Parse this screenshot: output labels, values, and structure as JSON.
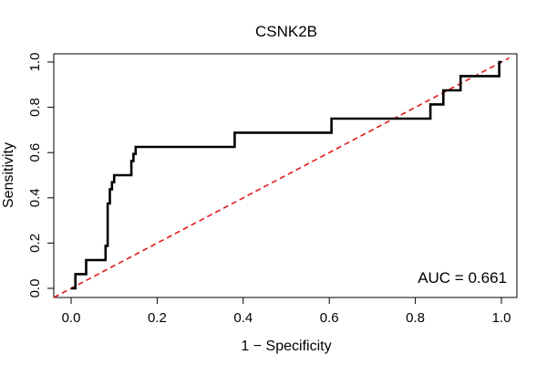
{
  "chart_data": {
    "type": "line",
    "title": "CSNK2B",
    "xlabel": "1 − Specificity",
    "ylabel": "Sensitivity",
    "xlim": [
      0,
      1
    ],
    "ylim": [
      0,
      1
    ],
    "x_ticks": [
      "0.0",
      "0.2",
      "0.4",
      "0.6",
      "0.8",
      "1.0"
    ],
    "y_ticks": [
      "0.0",
      "0.2",
      "0.4",
      "0.6",
      "0.8",
      "1.0"
    ],
    "annotation": "AUC = 0.661",
    "series": [
      {
        "name": "ROC curve",
        "color": "#000000",
        "style": "solid",
        "x": [
          0.0,
          0.01,
          0.01,
          0.035,
          0.035,
          0.08,
          0.08,
          0.085,
          0.085,
          0.09,
          0.09,
          0.095,
          0.095,
          0.1,
          0.1,
          0.14,
          0.14,
          0.145,
          0.145,
          0.15,
          0.15,
          0.38,
          0.38,
          0.605,
          0.605,
          0.835,
          0.835,
          0.865,
          0.865,
          0.905,
          0.905,
          0.995,
          0.995,
          1.0
        ],
        "y": [
          0.0,
          0.0,
          0.063,
          0.063,
          0.125,
          0.125,
          0.188,
          0.188,
          0.375,
          0.375,
          0.438,
          0.438,
          0.469,
          0.469,
          0.5,
          0.5,
          0.563,
          0.563,
          0.594,
          0.594,
          0.625,
          0.625,
          0.688,
          0.688,
          0.75,
          0.75,
          0.813,
          0.813,
          0.875,
          0.875,
          0.938,
          0.938,
          1.0,
          1.0
        ]
      },
      {
        "name": "Reference diagonal",
        "color": "#e31a1c",
        "style": "dashed",
        "x": [
          0,
          1
        ],
        "y": [
          0,
          1
        ]
      }
    ]
  }
}
